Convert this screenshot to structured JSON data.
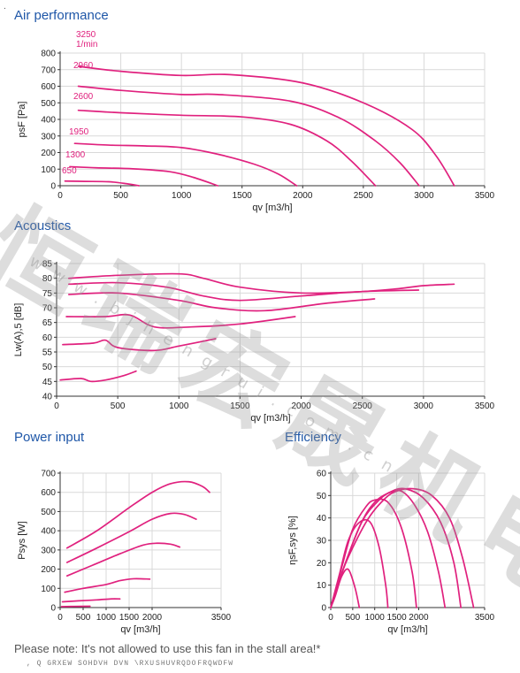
{
  "colors": {
    "title": "#1f57a8",
    "curve": "#e0217e",
    "grid": "#d9d9d9",
    "axis": "#333333"
  },
  "sections": {
    "air": "Air performance",
    "acoustics": "Acoustics",
    "power": "Power input",
    "efficiency": "Efficiency"
  },
  "note": "Please note: It's not allowed to use this fan in the stall area!*",
  "garbled_note": ", Q GRXEW SOHDVH DVN \\RXU\u0003SHUVRQDO\u0003FRQWDFW",
  "watermark": {
    "logo_text": "恒瑞宏晟机电",
    "url": "www.bjhengrui.com.cn"
  },
  "chart_data": [
    {
      "id": "air",
      "type": "line",
      "title": "Air performance",
      "xlabel": "qv [m3/h]",
      "ylabel": "psF [Pa]",
      "xlim": [
        0,
        3500
      ],
      "ylim": [
        0,
        800
      ],
      "xticks": [
        0,
        500,
        1000,
        1500,
        2000,
        2500,
        3000,
        3500
      ],
      "yticks": [
        0,
        100,
        200,
        300,
        400,
        500,
        600,
        700,
        800
      ],
      "grid": true,
      "annotations": [
        "3250",
        "1/min",
        "2960",
        "2600",
        "1950",
        "1300",
        "650"
      ],
      "series": [
        {
          "name": "3250",
          "x": [
            150,
            500,
            1000,
            1400,
            2000,
            2500,
            2900,
            3100,
            3250
          ],
          "y": [
            720,
            690,
            665,
            670,
            620,
            500,
            340,
            180,
            0
          ]
        },
        {
          "name": "2960",
          "x": [
            150,
            500,
            1000,
            1300,
            1900,
            2300,
            2600,
            2800,
            2960
          ],
          "y": [
            600,
            575,
            550,
            550,
            510,
            410,
            270,
            140,
            0
          ]
        },
        {
          "name": "2600",
          "x": [
            150,
            500,
            1000,
            1500,
            1900,
            2200,
            2400,
            2600
          ],
          "y": [
            455,
            440,
            425,
            415,
            370,
            270,
            150,
            0
          ]
        },
        {
          "name": "1950",
          "x": [
            120,
            400,
            700,
            1000,
            1300,
            1600,
            1800,
            1950
          ],
          "y": [
            255,
            245,
            240,
            230,
            190,
            130,
            70,
            0
          ]
        },
        {
          "name": "1300",
          "x": [
            80,
            300,
            600,
            900,
            1100,
            1300
          ],
          "y": [
            115,
            108,
            102,
            85,
            50,
            0
          ]
        },
        {
          "name": "650",
          "x": [
            40,
            200,
            400,
            550,
            650
          ],
          "y": [
            28,
            26,
            24,
            12,
            0
          ]
        }
      ]
    },
    {
      "id": "acoustics",
      "type": "line",
      "title": "Acoustics",
      "xlabel": "qv [m3/h]",
      "ylabel": "Lw(A),5 [dB]",
      "xlim": [
        0,
        3500
      ],
      "ylim": [
        40,
        85
      ],
      "xticks": [
        0,
        500,
        1000,
        1500,
        2000,
        2500,
        3000,
        3500
      ],
      "yticks": [
        40,
        45,
        50,
        55,
        60,
        65,
        70,
        75,
        80,
        85
      ],
      "grid": true,
      "series": [
        {
          "name": "3250",
          "x": [
            100,
            500,
            1000,
            1200,
            1500,
            2000,
            2500,
            2800,
            3000,
            3250
          ],
          "y": [
            80,
            81,
            81.5,
            80,
            77,
            75,
            75.5,
            76.5,
            77.5,
            78
          ]
        },
        {
          "name": "2960",
          "x": [
            100,
            500,
            900,
            1200,
            1500,
            2000,
            2500,
            2960
          ],
          "y": [
            78,
            78.5,
            77,
            74,
            72.5,
            74,
            75.5,
            76
          ]
        },
        {
          "name": "2600",
          "x": [
            100,
            500,
            1000,
            1300,
            1700,
            2200,
            2600
          ],
          "y": [
            74.5,
            75,
            72.5,
            70,
            69,
            71.5,
            73
          ]
        },
        {
          "name": "1950",
          "x": [
            80,
            400,
            600,
            800,
            1100,
            1500,
            1950
          ],
          "y": [
            67,
            67,
            67.5,
            63.5,
            63.5,
            64.5,
            67
          ]
        },
        {
          "name": "1300",
          "x": [
            50,
            300,
            400,
            500,
            800,
            1000,
            1300
          ],
          "y": [
            57.5,
            58,
            59,
            56.5,
            55.5,
            57,
            59.5
          ]
        },
        {
          "name": "650",
          "x": [
            30,
            200,
            280,
            400,
            550,
            650
          ],
          "y": [
            45.5,
            46,
            45,
            45.5,
            47,
            48.5
          ]
        }
      ]
    },
    {
      "id": "power",
      "type": "line",
      "title": "Power input",
      "xlabel": "qv [m3/h]",
      "ylabel": "Psys [W]",
      "xlim": [
        0,
        3500
      ],
      "ylim": [
        0,
        700
      ],
      "xticks": [
        0,
        500,
        1000,
        1500,
        2000,
        3500
      ],
      "yticks": [
        0,
        100,
        200,
        300,
        400,
        500,
        600,
        700
      ],
      "grid": true,
      "series": [
        {
          "name": "3250",
          "x": [
            150,
            800,
            1500,
            2000,
            2400,
            2800,
            3100,
            3250
          ],
          "y": [
            310,
            400,
            520,
            600,
            645,
            655,
            630,
            600
          ]
        },
        {
          "name": "2960",
          "x": [
            150,
            800,
            1500,
            2000,
            2400,
            2700,
            2960
          ],
          "y": [
            235,
            310,
            395,
            460,
            490,
            485,
            460
          ]
        },
        {
          "name": "2600",
          "x": [
            150,
            700,
            1300,
            1800,
            2100,
            2400,
            2600
          ],
          "y": [
            165,
            220,
            280,
            325,
            335,
            330,
            315
          ]
        },
        {
          "name": "1950",
          "x": [
            100,
            500,
            1000,
            1300,
            1600,
            1950
          ],
          "y": [
            80,
            100,
            120,
            140,
            150,
            148
          ]
        },
        {
          "name": "1300",
          "x": [
            50,
            400,
            800,
            1100,
            1300
          ],
          "y": [
            30,
            35,
            40,
            45,
            45
          ]
        },
        {
          "name": "650",
          "x": [
            30,
            300,
            650
          ],
          "y": [
            5,
            6,
            7
          ]
        }
      ]
    },
    {
      "id": "efficiency",
      "type": "line",
      "title": "Efficiency",
      "xlabel": "qv [m3/h]",
      "ylabel": "ηsF,sys [%]",
      "xlim": [
        0,
        3500
      ],
      "ylim": [
        0,
        60
      ],
      "xticks": [
        0,
        500,
        1000,
        1500,
        2000,
        3500
      ],
      "yticks": [
        0,
        10,
        20,
        30,
        40,
        50,
        60
      ],
      "grid": true,
      "series": [
        {
          "name": "3250",
          "x": [
            0,
            300,
            800,
            1200,
            1500,
            1900,
            2300,
            2700,
            3000,
            3250
          ],
          "y": [
            0,
            18,
            38,
            48,
            52,
            53,
            50,
            40,
            22,
            0
          ]
        },
        {
          "name": "2960",
          "x": [
            0,
            300,
            700,
            1100,
            1400,
            1700,
            2100,
            2500,
            2800,
            2960
          ],
          "y": [
            0,
            18,
            38,
            48,
            52,
            53,
            49,
            38,
            20,
            0
          ]
        },
        {
          "name": "2600",
          "x": [
            0,
            300,
            700,
            1000,
            1300,
            1600,
            1900,
            2200,
            2450,
            2600
          ],
          "y": [
            0,
            18,
            38,
            47,
            51,
            52,
            46,
            34,
            16,
            0
          ]
        },
        {
          "name": "1950",
          "x": [
            0,
            250,
            500,
            800,
            1000,
            1300,
            1600,
            1850,
            1950
          ],
          "y": [
            0,
            18,
            35,
            45,
            48,
            47,
            36,
            16,
            0
          ]
        },
        {
          "name": "1300",
          "x": [
            0,
            200,
            400,
            650,
            900,
            1100,
            1250,
            1300
          ],
          "y": [
            0,
            15,
            30,
            38,
            38,
            27,
            10,
            0
          ]
        },
        {
          "name": "650",
          "x": [
            0,
            100,
            250,
            400,
            550,
            650
          ],
          "y": [
            0,
            5,
            14,
            17,
            9,
            0
          ]
        }
      ]
    }
  ]
}
